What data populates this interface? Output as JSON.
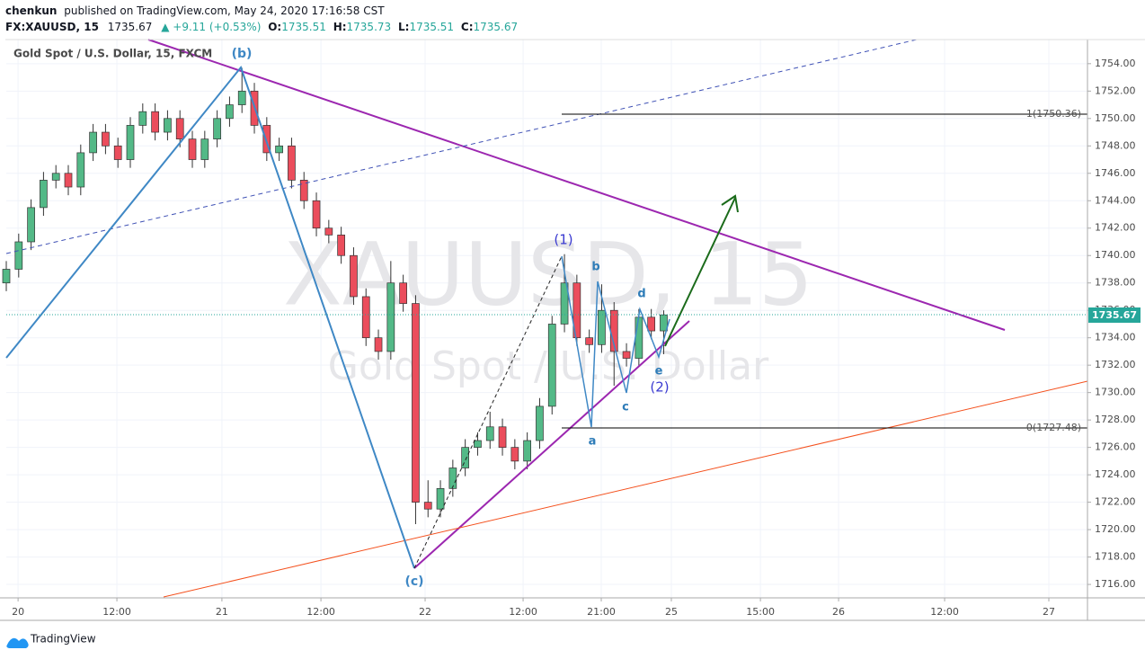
{
  "header": {
    "author": "chenkun",
    "published": "published on TradingView.com, May 24, 2020 17:16:58 CST",
    "symbol": "FX:XAUUSD, 15",
    "price": "1735.67",
    "change": "▲ +9.11 (+0.53%)",
    "o_label": "O:",
    "o": "1735.51",
    "h_label": "H:",
    "h": "1735.73",
    "l_label": "L:",
    "l": "1735.51",
    "c_label": "C:",
    "c": "1735.67"
  },
  "footer": {
    "brand": "TradingView"
  },
  "chart_data": {
    "type": "candlestick",
    "title": "Gold Spot / U.S. Dollar, 15, FXCM",
    "watermark": [
      "XAUUSD, 15",
      "Gold Spot / U.S. Dollar"
    ],
    "up_color": "#53b987",
    "down_color": "#eb4d5c",
    "grid": true,
    "last_price_label": "1735.67",
    "annotations": [
      "(b)",
      "(c)",
      "(1)",
      "b",
      "a",
      "c",
      "d",
      "e",
      "(2)",
      "1(1750.36)",
      "0(1727.48)"
    ],
    "x": [
      0,
      6,
      12,
      18,
      24,
      30,
      36,
      42,
      48,
      54,
      60,
      66,
      72,
      78,
      84,
      90,
      96,
      102,
      108,
      114,
      120,
      126,
      132,
      138,
      144,
      150,
      156,
      162,
      168,
      174,
      180,
      186,
      192,
      198,
      204,
      210,
      216,
      222,
      228,
      234,
      240,
      246,
      252,
      258,
      264,
      270,
      276,
      282,
      288,
      294,
      300,
      306,
      312,
      318
    ],
    "open": [
      1738.0,
      1739.0,
      1741.0,
      1743.5,
      1745.5,
      1746.0,
      1745.0,
      1747.5,
      1749.0,
      1748.0,
      1747.0,
      1749.5,
      1750.5,
      1749.0,
      1750.0,
      1748.5,
      1747.0,
      1748.5,
      1750.0,
      1751.0,
      1752.0,
      1749.5,
      1747.5,
      1748.0,
      1745.5,
      1744.0,
      1742.0,
      1741.5,
      1740.0,
      1737.0,
      1734.0,
      1733.0,
      1738.0,
      1736.5,
      1722.0,
      1721.5,
      1723.0,
      1724.5,
      1726.0,
      1726.5,
      1727.5,
      1726.0,
      1725.0,
      1726.5,
      1729.0,
      1735.0,
      1738.0,
      1734.0,
      1733.5,
      1736.0,
      1733.0,
      1732.5,
      1735.5,
      1734.5
    ],
    "high": [
      1739.6,
      1741.6,
      1744.1,
      1746.1,
      1746.6,
      1746.6,
      1748.1,
      1749.6,
      1749.6,
      1748.6,
      1750.1,
      1751.1,
      1751.1,
      1750.6,
      1750.6,
      1749.1,
      1749.1,
      1750.6,
      1751.6,
      1753.7,
      1752.6,
      1750.1,
      1748.6,
      1748.6,
      1746.1,
      1744.6,
      1742.6,
      1742.1,
      1740.6,
      1737.6,
      1734.6,
      1739.6,
      1738.6,
      1737.1,
      1723.6,
      1723.6,
      1725.1,
      1726.6,
      1727.1,
      1728.6,
      1728.1,
      1726.6,
      1727.1,
      1729.6,
      1735.6,
      1740.1,
      1738.6,
      1734.6,
      1737.9,
      1736.6,
      1733.6,
      1736.1,
      1736.1,
      1736.0
    ],
    "low": [
      1737.4,
      1738.4,
      1740.4,
      1742.9,
      1744.9,
      1744.4,
      1744.4,
      1746.9,
      1747.4,
      1746.4,
      1746.4,
      1748.9,
      1748.4,
      1748.4,
      1747.9,
      1746.4,
      1746.4,
      1747.9,
      1749.4,
      1750.4,
      1748.9,
      1746.9,
      1746.9,
      1744.9,
      1743.4,
      1741.4,
      1740.9,
      1739.4,
      1736.4,
      1733.4,
      1732.4,
      1732.4,
      1735.9,
      1720.4,
      1720.9,
      1720.9,
      1722.4,
      1723.9,
      1725.4,
      1725.9,
      1725.4,
      1724.4,
      1724.4,
      1725.9,
      1728.4,
      1734.4,
      1733.4,
      1732.9,
      1732.9,
      1730.5,
      1731.9,
      1731.9,
      1733.9,
      1732.8
    ],
    "close": [
      1739.0,
      1741.0,
      1743.5,
      1745.5,
      1746.0,
      1745.0,
      1747.5,
      1749.0,
      1748.0,
      1747.0,
      1749.5,
      1750.5,
      1749.0,
      1750.0,
      1748.5,
      1747.0,
      1748.5,
      1750.0,
      1751.0,
      1752.0,
      1749.5,
      1747.5,
      1748.0,
      1745.5,
      1744.0,
      1742.0,
      1741.5,
      1740.0,
      1737.0,
      1734.0,
      1733.0,
      1738.0,
      1736.5,
      1722.0,
      1721.5,
      1723.0,
      1724.5,
      1726.0,
      1726.5,
      1727.5,
      1726.0,
      1725.0,
      1726.5,
      1729.0,
      1735.0,
      1738.0,
      1734.0,
      1733.5,
      1736.0,
      1733.0,
      1732.5,
      1735.5,
      1734.5,
      1735.67
    ],
    "xlim": [
      0,
      523
    ],
    "ylim": [
      1715.02,
      1755.76
    ],
    "xticks": [
      {
        "value": 5.7,
        "label": "20"
      },
      {
        "value": 53.5,
        "label": "12:00"
      },
      {
        "value": 104.3,
        "label": "21"
      },
      {
        "value": 152.2,
        "label": "12:00"
      },
      {
        "value": 202.6,
        "label": "22"
      },
      {
        "value": 250,
        "label": "12:00"
      },
      {
        "value": 287.8,
        "label": "21:00"
      },
      {
        "value": 321.7,
        "label": "25"
      },
      {
        "value": 364.8,
        "label": "15:00"
      },
      {
        "value": 402.6,
        "label": "26"
      },
      {
        "value": 453.9,
        "label": "12:00"
      },
      {
        "value": 504.3,
        "label": "27"
      }
    ],
    "yticks": [
      {
        "value": 1716,
        "label": "1716.00"
      },
      {
        "value": 1718,
        "label": "1718.00"
      },
      {
        "value": 1720,
        "label": "1720.00"
      },
      {
        "value": 1722,
        "label": "1722.00"
      },
      {
        "value": 1724,
        "label": "1724.00"
      },
      {
        "value": 1726,
        "label": "1726.00"
      },
      {
        "value": 1728,
        "label": "1728.00"
      },
      {
        "value": 1730,
        "label": "1730.00"
      },
      {
        "value": 1732,
        "label": "1732.00"
      },
      {
        "value": 1734,
        "label": "1734.00"
      },
      {
        "value": 1736,
        "label": "1736.00"
      },
      {
        "value": 1738,
        "label": "1738.00"
      },
      {
        "value": 1740,
        "label": "1740.00"
      },
      {
        "value": 1742,
        "label": "1742.00"
      },
      {
        "value": 1744,
        "label": "1744.00"
      },
      {
        "value": 1746,
        "label": "1746.00"
      },
      {
        "value": 1748,
        "label": "1748.00"
      },
      {
        "value": 1750,
        "label": "1750.00"
      },
      {
        "value": 1752,
        "label": "1752.00"
      },
      {
        "value": 1754,
        "label": "1754.00"
      }
    ]
  }
}
